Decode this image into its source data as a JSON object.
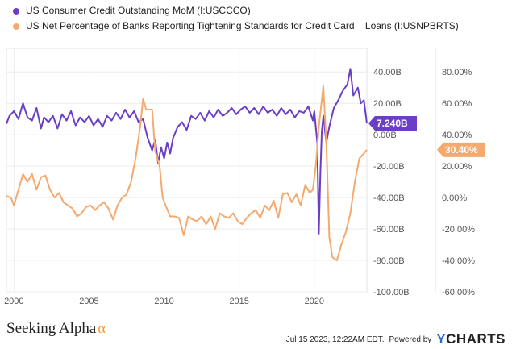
{
  "legend": [
    {
      "label": "US Consumer Credit Outstanding MoM (I:USCCCO)",
      "color": "#6a3fc6"
    },
    {
      "label": "US Net Percentage of Banks Reporting Tightening Standards for Credit Card    Loans (I:USNPBRTS)",
      "color": "#f4a96e"
    }
  ],
  "footer": {
    "brand": "Seeking Alpha",
    "alpha_symbol": "α",
    "timestamp": "Jul 15 2023, 12:22AM EDT.",
    "powered_by": "Powered by",
    "ycharts_y": "Y",
    "ycharts_rest": "CHARTS"
  },
  "chart_data": {
    "type": "line",
    "x_ticks": [
      "2000",
      "2005",
      "2010",
      "2015",
      "2020"
    ],
    "xlim": [
      1999.5,
      2023.5
    ],
    "left_axis": {
      "label": "",
      "ticks": [
        "40.00B",
        "20.00B",
        "0.00B",
        "-20.00B",
        "-40.00B",
        "-60.00B",
        "-80.00B",
        "-100.00B"
      ],
      "ylim": [
        -100,
        55
      ]
    },
    "right_axis": {
      "label": "",
      "ticks": [
        "80.00%",
        "60.00%",
        "40.00%",
        "20.00%",
        "0.00%",
        "-20.00%",
        "-40.00%",
        "-60.00%"
      ],
      "ylim": [
        -60,
        95
      ]
    },
    "series": [
      {
        "name": "US Consumer Credit Outstanding MoM (I:USCCCO)",
        "axis": "left",
        "color": "#6a3fc6",
        "last_value_label": "7.240B",
        "points": [
          [
            1999.5,
            7
          ],
          [
            1999.7,
            12
          ],
          [
            2000.0,
            15
          ],
          [
            2000.3,
            10
          ],
          [
            2000.6,
            20
          ],
          [
            2000.9,
            11
          ],
          [
            2001.2,
            9
          ],
          [
            2001.5,
            17
          ],
          [
            2001.8,
            4
          ],
          [
            2002.0,
            11
          ],
          [
            2002.3,
            8
          ],
          [
            2002.6,
            12
          ],
          [
            2002.9,
            4
          ],
          [
            2003.2,
            13
          ],
          [
            2003.5,
            9
          ],
          [
            2003.8,
            15
          ],
          [
            2004.1,
            6
          ],
          [
            2004.4,
            11
          ],
          [
            2004.7,
            8
          ],
          [
            2005.0,
            12
          ],
          [
            2005.3,
            6
          ],
          [
            2005.6,
            10
          ],
          [
            2005.9,
            5
          ],
          [
            2006.2,
            12
          ],
          [
            2006.5,
            9
          ],
          [
            2006.8,
            14
          ],
          [
            2007.1,
            10
          ],
          [
            2007.4,
            16
          ],
          [
            2007.7,
            11
          ],
          [
            2008.0,
            15
          ],
          [
            2008.3,
            8
          ],
          [
            2008.6,
            10
          ],
          [
            2008.9,
            -2
          ],
          [
            2009.2,
            -10
          ],
          [
            2009.4,
            -3
          ],
          [
            2009.6,
            -18
          ],
          [
            2009.8,
            -8
          ],
          [
            2010.0,
            -15
          ],
          [
            2010.2,
            -5
          ],
          [
            2010.4,
            -12
          ],
          [
            2010.6,
            -2
          ],
          [
            2010.9,
            5
          ],
          [
            2011.2,
            8
          ],
          [
            2011.5,
            3
          ],
          [
            2011.8,
            12
          ],
          [
            2012.1,
            10
          ],
          [
            2012.4,
            14
          ],
          [
            2012.7,
            9
          ],
          [
            2013.0,
            15
          ],
          [
            2013.3,
            11
          ],
          [
            2013.6,
            16
          ],
          [
            2013.9,
            12
          ],
          [
            2014.2,
            14
          ],
          [
            2014.5,
            17
          ],
          [
            2014.8,
            13
          ],
          [
            2015.1,
            16
          ],
          [
            2015.4,
            18
          ],
          [
            2015.7,
            14
          ],
          [
            2016.0,
            17
          ],
          [
            2016.3,
            13
          ],
          [
            2016.6,
            18
          ],
          [
            2016.9,
            14
          ],
          [
            2017.2,
            16
          ],
          [
            2017.5,
            12
          ],
          [
            2017.8,
            17
          ],
          [
            2018.1,
            13
          ],
          [
            2018.4,
            16
          ],
          [
            2018.7,
            11
          ],
          [
            2019.0,
            15
          ],
          [
            2019.3,
            14
          ],
          [
            2019.6,
            18
          ],
          [
            2019.9,
            9
          ],
          [
            2020.0,
            15
          ],
          [
            2020.2,
            -5
          ],
          [
            2020.3,
            -63
          ],
          [
            2020.4,
            -25
          ],
          [
            2020.5,
            2
          ],
          [
            2020.6,
            12
          ],
          [
            2020.8,
            -5
          ],
          [
            2021.0,
            5
          ],
          [
            2021.3,
            17
          ],
          [
            2021.6,
            22
          ],
          [
            2021.9,
            28
          ],
          [
            2022.2,
            32
          ],
          [
            2022.4,
            42
          ],
          [
            2022.6,
            25
          ],
          [
            2022.9,
            30
          ],
          [
            2023.1,
            20
          ],
          [
            2023.3,
            22
          ],
          [
            2023.5,
            7.24
          ]
        ]
      },
      {
        "name": "US Net Percentage of Banks Reporting Tightening Standards for Credit Card    Loans (I:USNPBRTS)",
        "axis": "right",
        "color": "#f4a96e",
        "last_value_label": "30.40%",
        "points": [
          [
            1999.5,
            1
          ],
          [
            1999.8,
            0
          ],
          [
            2000.0,
            -5
          ],
          [
            2000.3,
            5
          ],
          [
            2000.6,
            15
          ],
          [
            2000.9,
            10
          ],
          [
            2001.2,
            15
          ],
          [
            2001.5,
            5
          ],
          [
            2001.8,
            13
          ],
          [
            2002.1,
            14
          ],
          [
            2002.4,
            5
          ],
          [
            2002.7,
            0
          ],
          [
            2003.0,
            3
          ],
          [
            2003.3,
            -3
          ],
          [
            2003.6,
            -5
          ],
          [
            2003.9,
            -7
          ],
          [
            2004.2,
            -12
          ],
          [
            2004.5,
            -10
          ],
          [
            2004.8,
            -6
          ],
          [
            2005.1,
            -5
          ],
          [
            2005.4,
            -8
          ],
          [
            2005.7,
            -5
          ],
          [
            2006.0,
            -3
          ],
          [
            2006.3,
            -7
          ],
          [
            2006.6,
            -14
          ],
          [
            2006.9,
            -5
          ],
          [
            2007.2,
            0
          ],
          [
            2007.5,
            2
          ],
          [
            2007.8,
            10
          ],
          [
            2008.1,
            25
          ],
          [
            2008.4,
            45
          ],
          [
            2008.6,
            63
          ],
          [
            2008.8,
            56
          ],
          [
            2009.0,
            56
          ],
          [
            2009.2,
            56
          ],
          [
            2009.4,
            30
          ],
          [
            2009.7,
            20
          ],
          [
            2009.9,
            0
          ],
          [
            2010.1,
            -5
          ],
          [
            2010.4,
            -12
          ],
          [
            2010.7,
            -12
          ],
          [
            2011.0,
            -13
          ],
          [
            2011.3,
            -24
          ],
          [
            2011.6,
            -12
          ],
          [
            2011.9,
            -14
          ],
          [
            2012.2,
            -15
          ],
          [
            2012.5,
            -12
          ],
          [
            2012.8,
            -17
          ],
          [
            2013.1,
            -12
          ],
          [
            2013.4,
            -20
          ],
          [
            2013.7,
            -10
          ],
          [
            2014.0,
            -12
          ],
          [
            2014.3,
            -13
          ],
          [
            2014.6,
            -10
          ],
          [
            2014.9,
            -15
          ],
          [
            2015.2,
            -17
          ],
          [
            2015.5,
            -13
          ],
          [
            2015.8,
            -10
          ],
          [
            2016.1,
            -8
          ],
          [
            2016.4,
            -13
          ],
          [
            2016.7,
            -5
          ],
          [
            2017.0,
            -8
          ],
          [
            2017.3,
            -2
          ],
          [
            2017.6,
            -13
          ],
          [
            2017.9,
            2
          ],
          [
            2018.2,
            3
          ],
          [
            2018.5,
            -3
          ],
          [
            2018.8,
            2
          ],
          [
            2019.1,
            -5
          ],
          [
            2019.4,
            8
          ],
          [
            2019.7,
            3
          ],
          [
            2019.9,
            5
          ],
          [
            2020.1,
            20
          ],
          [
            2020.3,
            45
          ],
          [
            2020.6,
            71
          ],
          [
            2020.8,
            35
          ],
          [
            2021.0,
            -25
          ],
          [
            2021.2,
            -38
          ],
          [
            2021.5,
            -40
          ],
          [
            2021.8,
            -30
          ],
          [
            2022.1,
            -22
          ],
          [
            2022.4,
            -10
          ],
          [
            2022.7,
            10
          ],
          [
            2023.0,
            25
          ],
          [
            2023.3,
            28
          ],
          [
            2023.5,
            30.4
          ]
        ]
      }
    ]
  }
}
